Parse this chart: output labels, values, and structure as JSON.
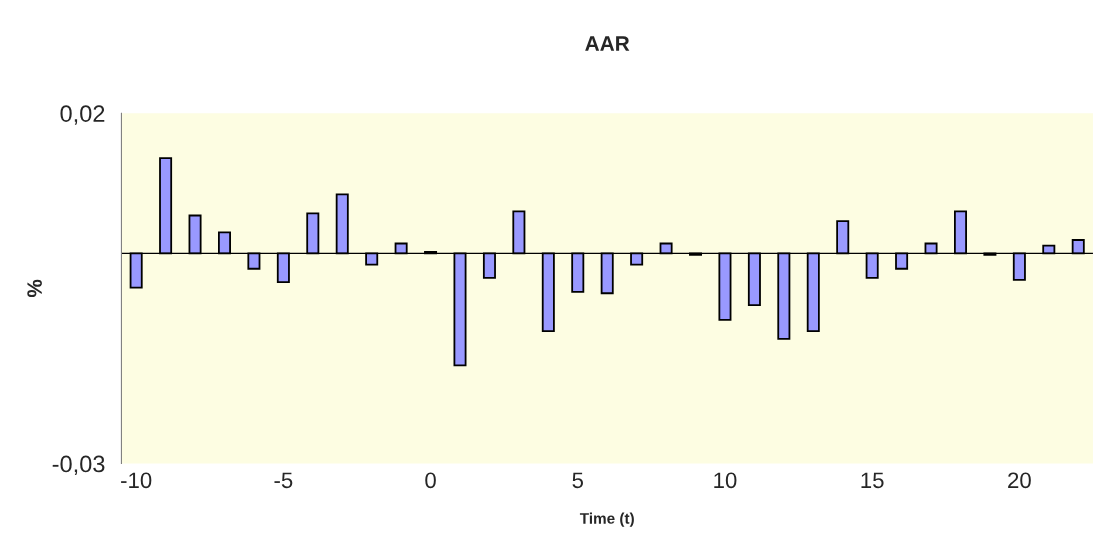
{
  "chart_data": {
    "type": "bar",
    "title": "AAR",
    "xlabel": "Time (t)",
    "ylabel": "%",
    "categories": [
      "-10",
      null,
      null,
      null,
      null,
      "-5",
      null,
      null,
      null,
      null,
      "0",
      null,
      null,
      null,
      null,
      "5",
      null,
      null,
      null,
      null,
      "10",
      null,
      null,
      null,
      null,
      "15",
      null,
      null,
      null,
      null,
      "20",
      null,
      null
    ],
    "values": [
      -0.0049,
      0.0136,
      0.0054,
      0.003,
      -0.0022,
      -0.0041,
      0.0057,
      0.0084,
      -0.0016,
      0.0014,
      0.0002,
      -0.016,
      -0.0035,
      0.006,
      -0.0111,
      -0.0055,
      -0.0057,
      -0.0016,
      0.0014,
      -0.0002,
      -0.0095,
      -0.0074,
      -0.0122,
      -0.0111,
      0.0046,
      -0.0035,
      -0.0022,
      0.0014,
      0.006,
      -0.0002,
      -0.0038,
      0.0011,
      0.0019
    ],
    "color": "#9999ff",
    "ylim": [
      -0.03,
      0.02
    ],
    "yticks": [
      {
        "value": -0.03,
        "label": "-0,03"
      },
      {
        "value": 0.02,
        "label": "0,02"
      }
    ],
    "grid": false,
    "legend": false
  }
}
